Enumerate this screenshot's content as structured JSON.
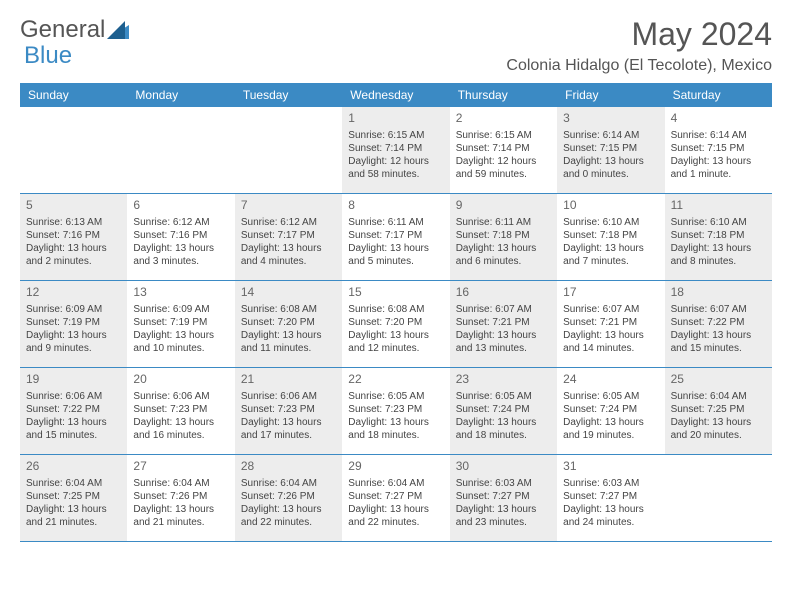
{
  "logo": {
    "text1": "General",
    "text2": "Blue"
  },
  "title": "May 2024",
  "location": "Colonia Hidalgo (El Tecolote), Mexico",
  "colors": {
    "header_bg": "#3b8ac4",
    "header_text": "#ffffff",
    "gray_cell": "#ededed",
    "text": "#444444",
    "title_color": "#555555",
    "border": "#3b8ac4"
  },
  "day_headers": [
    "Sunday",
    "Monday",
    "Tuesday",
    "Wednesday",
    "Thursday",
    "Friday",
    "Saturday"
  ],
  "weeks": [
    [
      {
        "empty": true
      },
      {
        "empty": true
      },
      {
        "empty": true
      },
      {
        "day": "1",
        "gray": true,
        "sunrise": "Sunrise: 6:15 AM",
        "sunset": "Sunset: 7:14 PM",
        "daylight": "Daylight: 12 hours and 58 minutes."
      },
      {
        "day": "2",
        "gray": false,
        "sunrise": "Sunrise: 6:15 AM",
        "sunset": "Sunset: 7:14 PM",
        "daylight": "Daylight: 12 hours and 59 minutes."
      },
      {
        "day": "3",
        "gray": true,
        "sunrise": "Sunrise: 6:14 AM",
        "sunset": "Sunset: 7:15 PM",
        "daylight": "Daylight: 13 hours and 0 minutes."
      },
      {
        "day": "4",
        "gray": false,
        "sunrise": "Sunrise: 6:14 AM",
        "sunset": "Sunset: 7:15 PM",
        "daylight": "Daylight: 13 hours and 1 minute."
      }
    ],
    [
      {
        "day": "5",
        "gray": true,
        "sunrise": "Sunrise: 6:13 AM",
        "sunset": "Sunset: 7:16 PM",
        "daylight": "Daylight: 13 hours and 2 minutes."
      },
      {
        "day": "6",
        "gray": false,
        "sunrise": "Sunrise: 6:12 AM",
        "sunset": "Sunset: 7:16 PM",
        "daylight": "Daylight: 13 hours and 3 minutes."
      },
      {
        "day": "7",
        "gray": true,
        "sunrise": "Sunrise: 6:12 AM",
        "sunset": "Sunset: 7:17 PM",
        "daylight": "Daylight: 13 hours and 4 minutes."
      },
      {
        "day": "8",
        "gray": false,
        "sunrise": "Sunrise: 6:11 AM",
        "sunset": "Sunset: 7:17 PM",
        "daylight": "Daylight: 13 hours and 5 minutes."
      },
      {
        "day": "9",
        "gray": true,
        "sunrise": "Sunrise: 6:11 AM",
        "sunset": "Sunset: 7:18 PM",
        "daylight": "Daylight: 13 hours and 6 minutes."
      },
      {
        "day": "10",
        "gray": false,
        "sunrise": "Sunrise: 6:10 AM",
        "sunset": "Sunset: 7:18 PM",
        "daylight": "Daylight: 13 hours and 7 minutes."
      },
      {
        "day": "11",
        "gray": true,
        "sunrise": "Sunrise: 6:10 AM",
        "sunset": "Sunset: 7:18 PM",
        "daylight": "Daylight: 13 hours and 8 minutes."
      }
    ],
    [
      {
        "day": "12",
        "gray": true,
        "sunrise": "Sunrise: 6:09 AM",
        "sunset": "Sunset: 7:19 PM",
        "daylight": "Daylight: 13 hours and 9 minutes."
      },
      {
        "day": "13",
        "gray": false,
        "sunrise": "Sunrise: 6:09 AM",
        "sunset": "Sunset: 7:19 PM",
        "daylight": "Daylight: 13 hours and 10 minutes."
      },
      {
        "day": "14",
        "gray": true,
        "sunrise": "Sunrise: 6:08 AM",
        "sunset": "Sunset: 7:20 PM",
        "daylight": "Daylight: 13 hours and 11 minutes."
      },
      {
        "day": "15",
        "gray": false,
        "sunrise": "Sunrise: 6:08 AM",
        "sunset": "Sunset: 7:20 PM",
        "daylight": "Daylight: 13 hours and 12 minutes."
      },
      {
        "day": "16",
        "gray": true,
        "sunrise": "Sunrise: 6:07 AM",
        "sunset": "Sunset: 7:21 PM",
        "daylight": "Daylight: 13 hours and 13 minutes."
      },
      {
        "day": "17",
        "gray": false,
        "sunrise": "Sunrise: 6:07 AM",
        "sunset": "Sunset: 7:21 PM",
        "daylight": "Daylight: 13 hours and 14 minutes."
      },
      {
        "day": "18",
        "gray": true,
        "sunrise": "Sunrise: 6:07 AM",
        "sunset": "Sunset: 7:22 PM",
        "daylight": "Daylight: 13 hours and 15 minutes."
      }
    ],
    [
      {
        "day": "19",
        "gray": true,
        "sunrise": "Sunrise: 6:06 AM",
        "sunset": "Sunset: 7:22 PM",
        "daylight": "Daylight: 13 hours and 15 minutes."
      },
      {
        "day": "20",
        "gray": false,
        "sunrise": "Sunrise: 6:06 AM",
        "sunset": "Sunset: 7:23 PM",
        "daylight": "Daylight: 13 hours and 16 minutes."
      },
      {
        "day": "21",
        "gray": true,
        "sunrise": "Sunrise: 6:06 AM",
        "sunset": "Sunset: 7:23 PM",
        "daylight": "Daylight: 13 hours and 17 minutes."
      },
      {
        "day": "22",
        "gray": false,
        "sunrise": "Sunrise: 6:05 AM",
        "sunset": "Sunset: 7:23 PM",
        "daylight": "Daylight: 13 hours and 18 minutes."
      },
      {
        "day": "23",
        "gray": true,
        "sunrise": "Sunrise: 6:05 AM",
        "sunset": "Sunset: 7:24 PM",
        "daylight": "Daylight: 13 hours and 18 minutes."
      },
      {
        "day": "24",
        "gray": false,
        "sunrise": "Sunrise: 6:05 AM",
        "sunset": "Sunset: 7:24 PM",
        "daylight": "Daylight: 13 hours and 19 minutes."
      },
      {
        "day": "25",
        "gray": true,
        "sunrise": "Sunrise: 6:04 AM",
        "sunset": "Sunset: 7:25 PM",
        "daylight": "Daylight: 13 hours and 20 minutes."
      }
    ],
    [
      {
        "day": "26",
        "gray": true,
        "sunrise": "Sunrise: 6:04 AM",
        "sunset": "Sunset: 7:25 PM",
        "daylight": "Daylight: 13 hours and 21 minutes."
      },
      {
        "day": "27",
        "gray": false,
        "sunrise": "Sunrise: 6:04 AM",
        "sunset": "Sunset: 7:26 PM",
        "daylight": "Daylight: 13 hours and 21 minutes."
      },
      {
        "day": "28",
        "gray": true,
        "sunrise": "Sunrise: 6:04 AM",
        "sunset": "Sunset: 7:26 PM",
        "daylight": "Daylight: 13 hours and 22 minutes."
      },
      {
        "day": "29",
        "gray": false,
        "sunrise": "Sunrise: 6:04 AM",
        "sunset": "Sunset: 7:27 PM",
        "daylight": "Daylight: 13 hours and 22 minutes."
      },
      {
        "day": "30",
        "gray": true,
        "sunrise": "Sunrise: 6:03 AM",
        "sunset": "Sunset: 7:27 PM",
        "daylight": "Daylight: 13 hours and 23 minutes."
      },
      {
        "day": "31",
        "gray": false,
        "sunrise": "Sunrise: 6:03 AM",
        "sunset": "Sunset: 7:27 PM",
        "daylight": "Daylight: 13 hours and 24 minutes."
      },
      {
        "empty": true
      }
    ]
  ]
}
